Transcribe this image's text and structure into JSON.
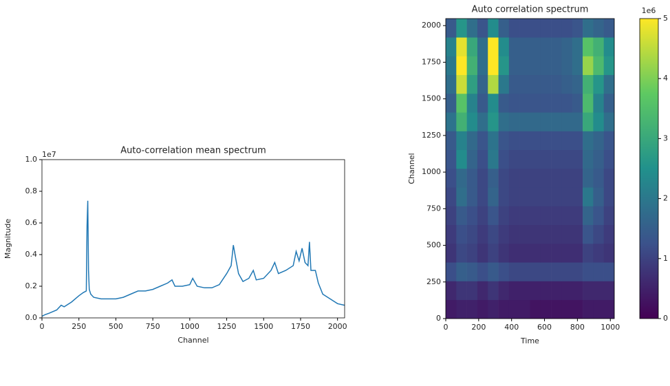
{
  "chart_data": [
    {
      "type": "line",
      "title": "Auto-correlation mean spectrum",
      "x_label": "Channel",
      "y_label": "Magnitude",
      "offset_label": "1e7",
      "color": "#1f77b4",
      "x": [
        0,
        20,
        50,
        100,
        130,
        150,
        200,
        250,
        280,
        300,
        305,
        310,
        315,
        320,
        330,
        350,
        400,
        450,
        500,
        550,
        600,
        650,
        700,
        750,
        800,
        850,
        880,
        900,
        950,
        1000,
        1020,
        1050,
        1100,
        1150,
        1200,
        1250,
        1280,
        1295,
        1310,
        1330,
        1360,
        1400,
        1430,
        1450,
        1500,
        1550,
        1575,
        1600,
        1650,
        1700,
        1720,
        1740,
        1760,
        1780,
        1800,
        1810,
        1820,
        1850,
        1870,
        1900,
        1950,
        2000,
        2047
      ],
      "values": [
        0.01,
        0.02,
        0.03,
        0.05,
        0.08,
        0.07,
        0.1,
        0.14,
        0.16,
        0.17,
        0.58,
        0.74,
        0.3,
        0.18,
        0.15,
        0.13,
        0.12,
        0.12,
        0.12,
        0.13,
        0.15,
        0.17,
        0.17,
        0.18,
        0.2,
        0.22,
        0.24,
        0.2,
        0.2,
        0.21,
        0.25,
        0.2,
        0.19,
        0.19,
        0.21,
        0.28,
        0.33,
        0.46,
        0.38,
        0.28,
        0.23,
        0.25,
        0.3,
        0.24,
        0.25,
        0.3,
        0.35,
        0.28,
        0.3,
        0.33,
        0.42,
        0.36,
        0.44,
        0.35,
        0.33,
        0.48,
        0.3,
        0.3,
        0.22,
        0.15,
        0.12,
        0.09,
        0.08
      ],
      "xlim": [
        0,
        2048
      ],
      "xticks": [
        0,
        250,
        500,
        750,
        1000,
        1250,
        1500,
        1750,
        2000
      ],
      "ylim": [
        0,
        1.0
      ],
      "yticks": [
        {
          "value": 0,
          "label": "0.0"
        },
        {
          "value": 0.2,
          "label": "0.2"
        },
        {
          "value": 0.4,
          "label": "0.4"
        },
        {
          "value": 0.6,
          "label": "0.6"
        },
        {
          "value": 0.8,
          "label": "0.8"
        },
        {
          "value": 1.0,
          "label": "1.0"
        }
      ]
    },
    {
      "type": "heatmap",
      "title": "Auto correlation spectrum",
      "x_label": "Time",
      "y_label": "Channel",
      "colormap": "viridis",
      "xlim": [
        0,
        1024
      ],
      "xticks": [
        0,
        200,
        400,
        600,
        800,
        1000
      ],
      "ylim": [
        0,
        2048
      ],
      "yticks": [
        0,
        250,
        500,
        750,
        1000,
        1250,
        1500,
        1750,
        2000
      ],
      "zlim": [
        0,
        5
      ],
      "colorbar_ticks": [
        0,
        1,
        2,
        3,
        4,
        5
      ],
      "colorbar_offset": "1e6",
      "values": [
        [
          0.4,
          0.5,
          0.5,
          0.4,
          0.5,
          0.4,
          0.4,
          0.4,
          0.3,
          0.3,
          0.3,
          0.3,
          0.3,
          0.4,
          0.4,
          0.4
        ],
        [
          0.6,
          0.8,
          0.8,
          0.6,
          0.8,
          0.6,
          0.5,
          0.5,
          0.5,
          0.5,
          0.5,
          0.5,
          0.5,
          0.6,
          0.6,
          0.6
        ],
        [
          1.2,
          1.5,
          1.4,
          1.2,
          1.4,
          1.2,
          1.1,
          1.1,
          1.1,
          1.1,
          1.1,
          1.1,
          1.1,
          1.2,
          1.2,
          1.2
        ],
        [
          0.8,
          1.1,
          1.0,
          0.8,
          1.0,
          0.8,
          0.7,
          0.7,
          0.7,
          0.7,
          0.7,
          0.7,
          0.7,
          1.0,
          0.9,
          0.8
        ],
        [
          0.9,
          1.2,
          1.1,
          0.9,
          1.1,
          0.9,
          0.8,
          0.8,
          0.8,
          0.8,
          0.8,
          0.8,
          0.8,
          1.3,
          1.1,
          0.9
        ],
        [
          1.0,
          1.4,
          1.2,
          1.0,
          1.3,
          1.0,
          0.9,
          0.9,
          0.9,
          0.9,
          0.9,
          0.9,
          0.9,
          1.6,
          1.3,
          1.0
        ],
        [
          1.1,
          1.8,
          1.4,
          1.1,
          1.6,
          1.1,
          1.0,
          1.0,
          1.0,
          1.0,
          1.0,
          1.0,
          1.0,
          2.0,
          1.5,
          1.1
        ],
        [
          1.2,
          1.7,
          1.4,
          1.1,
          1.5,
          1.1,
          1.0,
          1.0,
          1.0,
          1.0,
          1.0,
          1.0,
          1.0,
          1.6,
          1.4,
          1.1
        ],
        [
          1.3,
          2.4,
          1.6,
          1.2,
          2.0,
          1.2,
          1.1,
          1.1,
          1.1,
          1.1,
          1.1,
          1.1,
          1.1,
          1.7,
          1.5,
          1.2
        ],
        [
          1.4,
          2.2,
          1.7,
          1.3,
          1.9,
          1.3,
          1.2,
          1.2,
          1.2,
          1.2,
          1.2,
          1.2,
          1.2,
          1.8,
          1.6,
          1.3
        ],
        [
          1.9,
          3.2,
          2.4,
          1.8,
          2.6,
          1.8,
          1.7,
          1.7,
          1.7,
          1.7,
          1.7,
          1.7,
          1.7,
          3.0,
          2.4,
          1.8
        ],
        [
          1.5,
          3.6,
          2.2,
          1.4,
          2.4,
          1.4,
          1.3,
          1.3,
          1.3,
          1.3,
          1.3,
          1.3,
          1.4,
          3.4,
          2.2,
          1.5
        ],
        [
          1.8,
          4.6,
          2.8,
          1.6,
          4.4,
          2.0,
          1.4,
          1.4,
          1.4,
          1.4,
          1.4,
          1.5,
          1.6,
          3.2,
          2.6,
          1.8
        ],
        [
          2.0,
          5.0,
          3.2,
          1.8,
          5.0,
          2.6,
          1.5,
          1.5,
          1.5,
          1.5,
          1.5,
          1.6,
          1.8,
          4.2,
          3.4,
          2.6
        ],
        [
          2.2,
          4.8,
          3.0,
          1.8,
          5.0,
          2.4,
          1.5,
          1.5,
          1.5,
          1.5,
          1.5,
          1.6,
          1.8,
          3.6,
          3.2,
          2.4
        ],
        [
          1.4,
          2.6,
          1.8,
          1.3,
          2.4,
          1.5,
          1.2,
          1.2,
          1.2,
          1.2,
          1.2,
          1.2,
          1.3,
          1.8,
          1.6,
          1.4
        ]
      ]
    }
  ]
}
